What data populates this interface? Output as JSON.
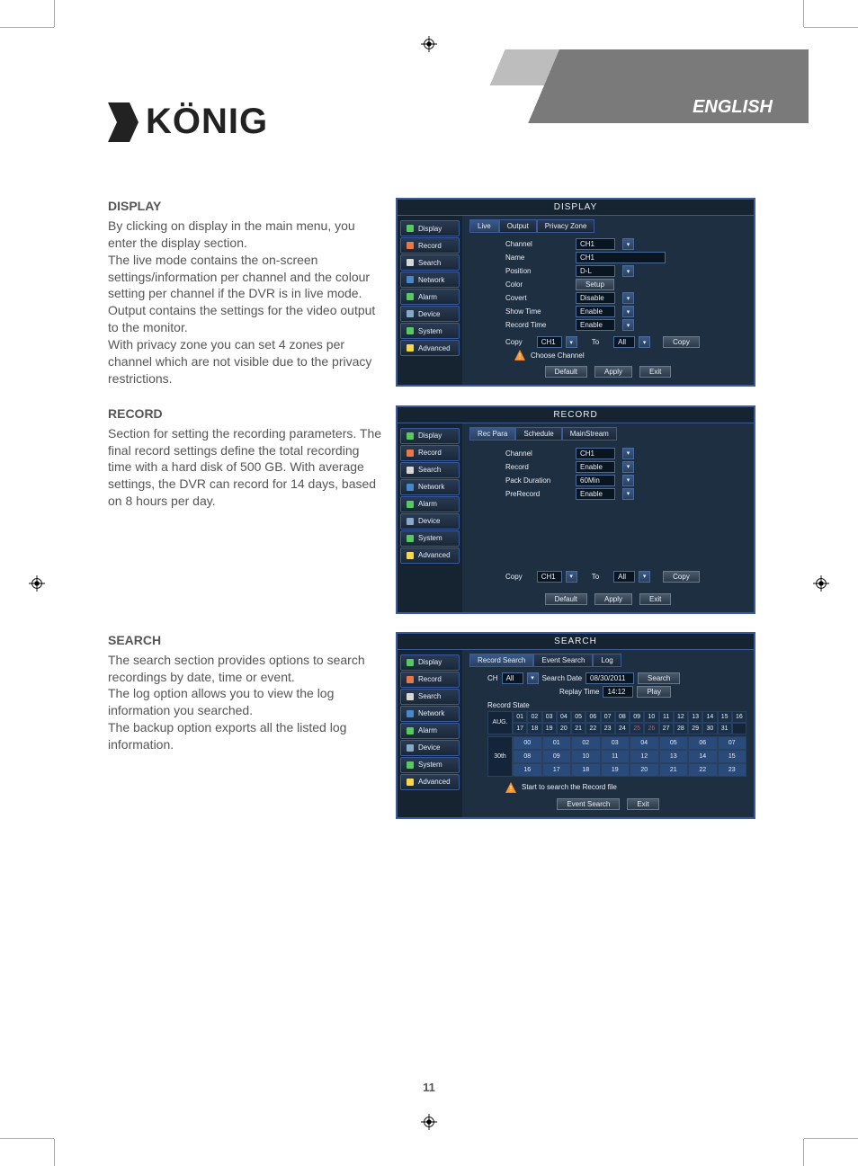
{
  "header": {
    "language": "ENGLISH",
    "logo_text": "KÖNIG"
  },
  "page_number": "11",
  "sections": {
    "display": {
      "heading": "DISPLAY",
      "body": "By clicking on display in the main menu, you enter the display section.\nThe live mode contains the on-screen settings/information per channel and the colour setting per channel if the DVR is in live mode.\nOutput contains the settings for the video output to the monitor.\nWith privacy zone you can set 4 zones per channel which are not visible due to the privacy restrictions."
    },
    "record": {
      "heading": "RECORD",
      "body": "Section for setting the recording parameters. The final record settings define the total recording time with a hard disk of 500 GB. With average settings, the DVR can record for 14 days, based on 8 hours per day."
    },
    "search": {
      "heading": "SEARCH",
      "body": "The search section provides options to search recordings by date, time or event.\nThe log option allows you to view the log information you searched.\nThe backup option exports all the listed log information."
    }
  },
  "sidebar_items": [
    {
      "label": "Display",
      "color": "#58c860"
    },
    {
      "label": "Record",
      "color": "#e87848"
    },
    {
      "label": "Search",
      "color": "#d8d8d8"
    },
    {
      "label": "Network",
      "color": "#4888c8"
    },
    {
      "label": "Alarm",
      "color": "#58c860"
    },
    {
      "label": "Device",
      "color": "#88a8c8"
    },
    {
      "label": "System",
      "color": "#58c860"
    },
    {
      "label": "Advanced",
      "color": "#f8d848"
    }
  ],
  "screenshots": {
    "display": {
      "title": "DISPLAY",
      "tabs": [
        "Live",
        "Output",
        "Privacy Zone"
      ],
      "active_tab": 0,
      "rows": [
        {
          "label": "Channel",
          "value": "CH1",
          "wide": true
        },
        {
          "label": "Name",
          "value": "CH1",
          "field_only": true
        },
        {
          "label": "Position",
          "value": "D-L"
        },
        {
          "label": "Color",
          "button": "Setup"
        },
        {
          "label": "Covert",
          "value": "Disable"
        },
        {
          "label": "Show Time",
          "value": "Enable"
        },
        {
          "label": "Record Time",
          "value": "Enable"
        }
      ],
      "copy": {
        "label": "Copy",
        "from_lbl": "CH1",
        "to_lbl": "To",
        "to_val": "All",
        "btn": "Copy"
      },
      "warn": "Choose Channel",
      "footer": [
        "Default",
        "Apply",
        "Exit"
      ]
    },
    "record": {
      "title": "RECORD",
      "tabs": [
        "Rec Para",
        "Schedule",
        "MainStream"
      ],
      "active_tab": 0,
      "rows": [
        {
          "label": "Channel",
          "value": "CH1"
        },
        {
          "label": "Record",
          "value": "Enable"
        },
        {
          "label": "Pack Duration",
          "value": "60Min"
        },
        {
          "label": "PreRecord",
          "value": "Enable"
        }
      ],
      "copy": {
        "label": "Copy",
        "from_lbl": "CH1",
        "to_lbl": "To",
        "to_val": "All",
        "btn": "Copy"
      },
      "footer": [
        "Default",
        "Apply",
        "Exit"
      ]
    },
    "search": {
      "title": "SEARCH",
      "tabs": [
        "Record Search",
        "Event Search",
        "Log"
      ],
      "active_tab": 0,
      "ch_label": "CH",
      "ch_value": "All",
      "date_label": "Search Date",
      "date_value": "08/30/2011",
      "search_btn": "Search",
      "replay_label": "Replay Time",
      "replay_value": "14:12",
      "play_btn": "Play",
      "state_label": "Record State",
      "month": "AUG.",
      "day_label": "30th",
      "cal_row1": [
        "01",
        "02",
        "03",
        "04",
        "05",
        "06",
        "07",
        "08",
        "09",
        "10",
        "11",
        "12",
        "13",
        "14",
        "15",
        "16"
      ],
      "cal_row2": [
        "17",
        "18",
        "19",
        "20",
        "21",
        "22",
        "23",
        "24",
        "25",
        "26",
        "27",
        "28",
        "29",
        "30",
        "31"
      ],
      "red_days": [
        "25",
        "26"
      ],
      "hours_r1": [
        "00",
        "01",
        "02",
        "03",
        "04",
        "05",
        "06",
        "07"
      ],
      "hours_r2": [
        "08",
        "09",
        "10",
        "11",
        "12",
        "13",
        "14",
        "15"
      ],
      "hours_r3": [
        "16",
        "17",
        "18",
        "19",
        "20",
        "21",
        "22",
        "23"
      ],
      "warn": "Start to search the Record file",
      "footer": [
        "Event Search",
        "Exit"
      ]
    }
  },
  "colors": {
    "dvr_border": "#3a5a9a",
    "dvr_bg": "#1a2838",
    "dvr_text": "#e8eef7",
    "warn_orange": "#f89838"
  }
}
